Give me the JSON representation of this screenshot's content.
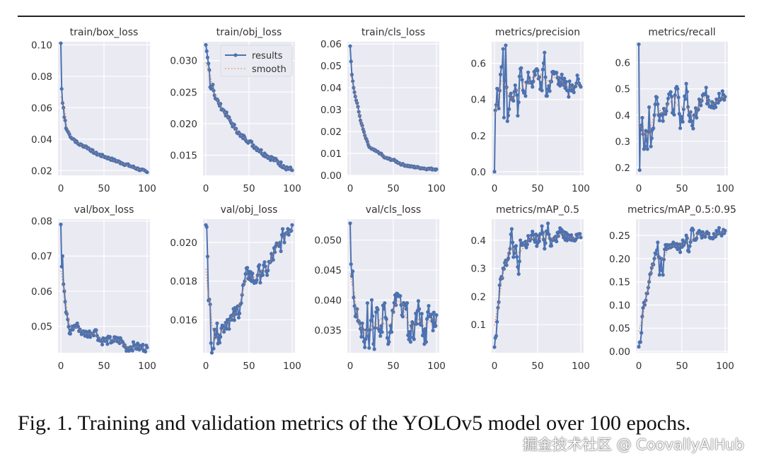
{
  "figure": {
    "caption": "Fig. 1.  Training and validation metrics of the YOLOv5 model over 100 epochs.",
    "watermark": "掘金技术社区 @ CoovallyAIHub",
    "legend": [
      "results",
      "smooth"
    ],
    "colors": {
      "results": "#4c72b0",
      "smooth": "#dd8452",
      "plot_bg": "#eaeaf2",
      "grid": "#ffffff",
      "text": "#333333"
    }
  },
  "chart_data": [
    {
      "type": "line",
      "title": "train/box_loss",
      "xlim": [
        0,
        100
      ],
      "xticks": [
        0,
        50,
        100
      ],
      "ylim": [
        0.017,
        0.102
      ],
      "yticks": [
        0.02,
        0.04,
        0.06,
        0.08,
        0.1
      ],
      "ytick_labels": [
        "0.02",
        "0.04",
        "0.06",
        "0.08",
        "0.10"
      ],
      "legend": false,
      "keypoints": [
        [
          0,
          0.101
        ],
        [
          1,
          0.072
        ],
        [
          2,
          0.063
        ],
        [
          3,
          0.06
        ],
        [
          4,
          0.054
        ],
        [
          5,
          0.052
        ],
        [
          6,
          0.047
        ],
        [
          8,
          0.045
        ],
        [
          10,
          0.043
        ],
        [
          12,
          0.041
        ],
        [
          15,
          0.04
        ],
        [
          20,
          0.037
        ],
        [
          25,
          0.036
        ],
        [
          30,
          0.035
        ],
        [
          40,
          0.031
        ],
        [
          50,
          0.029
        ],
        [
          60,
          0.027
        ],
        [
          70,
          0.025
        ],
        [
          80,
          0.023
        ],
        [
          90,
          0.021
        ],
        [
          100,
          0.019
        ]
      ],
      "noise": 0.0008
    },
    {
      "type": "line",
      "title": "train/obj_loss",
      "xlim": [
        0,
        100
      ],
      "xticks": [
        0,
        50,
        100
      ],
      "ylim": [
        0.0118,
        0.033
      ],
      "yticks": [
        0.015,
        0.02,
        0.025,
        0.03
      ],
      "ytick_labels": [
        "0.015",
        "0.020",
        "0.025",
        "0.030"
      ],
      "legend": true,
      "legend_loc": "upper right",
      "keypoints": [
        [
          0,
          0.0325
        ],
        [
          1,
          0.0315
        ],
        [
          2,
          0.0305
        ],
        [
          4,
          0.0285
        ],
        [
          5,
          0.0258
        ],
        [
          8,
          0.0262
        ],
        [
          10,
          0.0245
        ],
        [
          15,
          0.0232
        ],
        [
          20,
          0.0222
        ],
        [
          25,
          0.0212
        ],
        [
          30,
          0.02
        ],
        [
          35,
          0.0192
        ],
        [
          40,
          0.018
        ],
        [
          45,
          0.0178
        ],
        [
          50,
          0.0172
        ],
        [
          60,
          0.016
        ],
        [
          70,
          0.015
        ],
        [
          80,
          0.0142
        ],
        [
          90,
          0.0133
        ],
        [
          100,
          0.0126
        ]
      ],
      "noise": 0.0004
    },
    {
      "type": "line",
      "title": "train/cls_loss",
      "xlim": [
        0,
        100
      ],
      "xticks": [
        0,
        50,
        100
      ],
      "ylim": [
        0.0,
        0.061
      ],
      "yticks": [
        0.0,
        0.01,
        0.02,
        0.03,
        0.04,
        0.05,
        0.06
      ],
      "ytick_labels": [
        "0.00",
        "0.01",
        "0.02",
        "0.03",
        "0.04",
        "0.05",
        "0.06"
      ],
      "legend": false,
      "keypoints": [
        [
          0,
          0.059
        ],
        [
          1,
          0.052
        ],
        [
          2,
          0.046
        ],
        [
          3,
          0.043
        ],
        [
          4,
          0.04
        ],
        [
          6,
          0.036
        ],
        [
          8,
          0.033
        ],
        [
          10,
          0.029
        ],
        [
          12,
          0.025
        ],
        [
          15,
          0.021
        ],
        [
          18,
          0.017
        ],
        [
          22,
          0.013
        ],
        [
          25,
          0.012
        ],
        [
          30,
          0.011
        ],
        [
          35,
          0.01
        ],
        [
          40,
          0.008
        ],
        [
          50,
          0.007
        ],
        [
          60,
          0.005
        ],
        [
          70,
          0.004
        ],
        [
          80,
          0.0035
        ],
        [
          90,
          0.003
        ],
        [
          100,
          0.0028
        ]
      ],
      "noise": 0.0004
    },
    {
      "type": "line",
      "title": "metrics/precision",
      "xlim": [
        0,
        100
      ],
      "xticks": [
        0,
        50,
        100
      ],
      "ylim": [
        -0.02,
        0.72
      ],
      "yticks": [
        0.0,
        0.2,
        0.4,
        0.6
      ],
      "ytick_labels": [
        "0.0",
        "0.2",
        "0.4",
        "0.6"
      ],
      "legend": false,
      "keypoints": [
        [
          0,
          0.0
        ],
        [
          1,
          0.34
        ],
        [
          2,
          0.37
        ],
        [
          3,
          0.46
        ],
        [
          5,
          0.35
        ],
        [
          8,
          0.58
        ],
        [
          10,
          0.68
        ],
        [
          11,
          0.3
        ],
        [
          13,
          0.7
        ],
        [
          15,
          0.28
        ],
        [
          18,
          0.42
        ],
        [
          20,
          0.4
        ],
        [
          25,
          0.45
        ],
        [
          27,
          0.31
        ],
        [
          30,
          0.57
        ],
        [
          35,
          0.44
        ],
        [
          40,
          0.52
        ],
        [
          45,
          0.5
        ],
        [
          50,
          0.56
        ],
        [
          55,
          0.45
        ],
        [
          58,
          0.66
        ],
        [
          60,
          0.42
        ],
        [
          65,
          0.5
        ],
        [
          70,
          0.55
        ],
        [
          75,
          0.52
        ],
        [
          80,
          0.48
        ],
        [
          85,
          0.45
        ],
        [
          90,
          0.48
        ],
        [
          95,
          0.49
        ],
        [
          100,
          0.47
        ]
      ],
      "noise": 0.05
    },
    {
      "type": "line",
      "title": "metrics/recall",
      "xlim": [
        0,
        100
      ],
      "xticks": [
        0,
        50,
        100
      ],
      "ylim": [
        0.17,
        0.68
      ],
      "yticks": [
        0.2,
        0.3,
        0.4,
        0.5,
        0.6
      ],
      "ytick_labels": [
        "0.2",
        "0.3",
        "0.4",
        "0.5",
        "0.6"
      ],
      "legend": false,
      "keypoints": [
        [
          0,
          0.67
        ],
        [
          1,
          0.19
        ],
        [
          2,
          0.36
        ],
        [
          4,
          0.39
        ],
        [
          6,
          0.27
        ],
        [
          8,
          0.34
        ],
        [
          10,
          0.27
        ],
        [
          12,
          0.43
        ],
        [
          14,
          0.28
        ],
        [
          18,
          0.4
        ],
        [
          20,
          0.47
        ],
        [
          25,
          0.4
        ],
        [
          30,
          0.42
        ],
        [
          35,
          0.48
        ],
        [
          40,
          0.42
        ],
        [
          45,
          0.5
        ],
        [
          48,
          0.35
        ],
        [
          50,
          0.38
        ],
        [
          55,
          0.52
        ],
        [
          58,
          0.4
        ],
        [
          62,
          0.36
        ],
        [
          65,
          0.4
        ],
        [
          70,
          0.46
        ],
        [
          75,
          0.48
        ],
        [
          80,
          0.47
        ],
        [
          85,
          0.45
        ],
        [
          90,
          0.46
        ],
        [
          95,
          0.46
        ],
        [
          100,
          0.47
        ]
      ],
      "noise": 0.035
    },
    {
      "type": "line",
      "title": "val/box_loss",
      "xlim": [
        0,
        100
      ],
      "xticks": [
        0,
        50,
        100
      ],
      "ylim": [
        0.0425,
        0.0805
      ],
      "yticks": [
        0.05,
        0.06,
        0.07,
        0.08
      ],
      "ytick_labels": [
        "0.05",
        "0.06",
        "0.07",
        "0.08"
      ],
      "legend": false,
      "keypoints": [
        [
          0,
          0.079
        ],
        [
          1,
          0.067
        ],
        [
          2,
          0.07
        ],
        [
          3,
          0.062
        ],
        [
          4,
          0.06
        ],
        [
          5,
          0.057
        ],
        [
          6,
          0.054
        ],
        [
          8,
          0.052
        ],
        [
          10,
          0.048
        ],
        [
          12,
          0.049
        ],
        [
          15,
          0.05
        ],
        [
          20,
          0.05
        ],
        [
          25,
          0.048
        ],
        [
          30,
          0.048
        ],
        [
          35,
          0.048
        ],
        [
          40,
          0.049
        ],
        [
          45,
          0.046
        ],
        [
          50,
          0.046
        ],
        [
          60,
          0.046
        ],
        [
          70,
          0.046
        ],
        [
          75,
          0.044
        ],
        [
          80,
          0.044
        ],
        [
          85,
          0.0445
        ],
        [
          90,
          0.044
        ],
        [
          100,
          0.044
        ]
      ],
      "noise": 0.0012
    },
    {
      "type": "line",
      "title": "val/obj_loss",
      "xlim": [
        0,
        100
      ],
      "xticks": [
        0,
        50,
        100
      ],
      "ylim": [
        0.0143,
        0.0212
      ],
      "yticks": [
        0.016,
        0.018,
        0.02
      ],
      "ytick_labels": [
        "0.016",
        "0.018",
        "0.020"
      ],
      "legend": false,
      "keypoints": [
        [
          0,
          0.0209
        ],
        [
          1,
          0.0208
        ],
        [
          3,
          0.017
        ],
        [
          5,
          0.0168
        ],
        [
          6,
          0.0148
        ],
        [
          8,
          0.0145
        ],
        [
          10,
          0.0155
        ],
        [
          15,
          0.0152
        ],
        [
          20,
          0.0157
        ],
        [
          25,
          0.016
        ],
        [
          30,
          0.016
        ],
        [
          35,
          0.0163
        ],
        [
          40,
          0.0168
        ],
        [
          45,
          0.018
        ],
        [
          50,
          0.0185
        ],
        [
          55,
          0.018
        ],
        [
          60,
          0.0183
        ],
        [
          65,
          0.0185
        ],
        [
          70,
          0.0185
        ],
        [
          75,
          0.019
        ],
        [
          80,
          0.0195
        ],
        [
          85,
          0.0198
        ],
        [
          90,
          0.0203
        ],
        [
          95,
          0.0207
        ],
        [
          100,
          0.0209
        ]
      ],
      "noise": 0.0005
    },
    {
      "type": "line",
      "title": "val/cls_loss",
      "xlim": [
        0,
        100
      ],
      "xticks": [
        0,
        50,
        100
      ],
      "ylim": [
        0.0312,
        0.0535
      ],
      "yticks": [
        0.035,
        0.04,
        0.045,
        0.05
      ],
      "ytick_labels": [
        "0.035",
        "0.040",
        "0.045",
        "0.050"
      ],
      "legend": false,
      "keypoints": [
        [
          0,
          0.0528
        ],
        [
          1,
          0.046
        ],
        [
          2,
          0.044
        ],
        [
          3,
          0.0448
        ],
        [
          5,
          0.039
        ],
        [
          8,
          0.0385
        ],
        [
          10,
          0.0365
        ],
        [
          15,
          0.035
        ],
        [
          18,
          0.0335
        ],
        [
          20,
          0.0395
        ],
        [
          22,
          0.032
        ],
        [
          25,
          0.04
        ],
        [
          28,
          0.0318
        ],
        [
          30,
          0.038
        ],
        [
          35,
          0.034
        ],
        [
          40,
          0.0395
        ],
        [
          45,
          0.033
        ],
        [
          50,
          0.038
        ],
        [
          55,
          0.041
        ],
        [
          60,
          0.0375
        ],
        [
          65,
          0.0385
        ],
        [
          70,
          0.033
        ],
        [
          75,
          0.036
        ],
        [
          80,
          0.0385
        ],
        [
          85,
          0.035
        ],
        [
          88,
          0.033
        ],
        [
          90,
          0.038
        ],
        [
          95,
          0.0365
        ],
        [
          100,
          0.0375
        ]
      ],
      "noise": 0.0022
    },
    {
      "type": "line",
      "title": "metrics/mAP_0.5",
      "xlim": [
        0,
        100
      ],
      "xticks": [
        0,
        50,
        100
      ],
      "ylim": [
        0.0,
        0.475
      ],
      "yticks": [
        0.1,
        0.2,
        0.3,
        0.4
      ],
      "ytick_labels": [
        "0.1",
        "0.2",
        "0.3",
        "0.4"
      ],
      "legend": false,
      "keypoints": [
        [
          0,
          0.02
        ],
        [
          2,
          0.06
        ],
        [
          3,
          0.11
        ],
        [
          4,
          0.16
        ],
        [
          5,
          0.18
        ],
        [
          6,
          0.24
        ],
        [
          8,
          0.27
        ],
        [
          10,
          0.3
        ],
        [
          12,
          0.32
        ],
        [
          15,
          0.33
        ],
        [
          18,
          0.37
        ],
        [
          20,
          0.44
        ],
        [
          22,
          0.34
        ],
        [
          25,
          0.38
        ],
        [
          28,
          0.28
        ],
        [
          30,
          0.4
        ],
        [
          35,
          0.39
        ],
        [
          40,
          0.4
        ],
        [
          45,
          0.42
        ],
        [
          50,
          0.39
        ],
        [
          55,
          0.45
        ],
        [
          58,
          0.37
        ],
        [
          62,
          0.46
        ],
        [
          65,
          0.38
        ],
        [
          70,
          0.4
        ],
        [
          75,
          0.43
        ],
        [
          80,
          0.41
        ],
        [
          85,
          0.42
        ],
        [
          90,
          0.4
        ],
        [
          95,
          0.42
        ],
        [
          100,
          0.41
        ]
      ],
      "noise": 0.02
    },
    {
      "type": "line",
      "title": "metrics/mAP_0.5:0.95",
      "xlim": [
        0,
        100
      ],
      "xticks": [
        0,
        50,
        100
      ],
      "ylim": [
        -0.003,
        0.285
      ],
      "yticks": [
        0.0,
        0.05,
        0.1,
        0.15,
        0.2,
        0.25
      ],
      "ytick_labels": [
        "0.00",
        "0.05",
        "0.10",
        "0.15",
        "0.20",
        "0.25"
      ],
      "legend": false,
      "keypoints": [
        [
          0,
          0.01
        ],
        [
          2,
          0.02
        ],
        [
          3,
          0.04
        ],
        [
          4,
          0.075
        ],
        [
          6,
          0.105
        ],
        [
          8,
          0.11
        ],
        [
          10,
          0.125
        ],
        [
          12,
          0.15
        ],
        [
          15,
          0.18
        ],
        [
          18,
          0.2
        ],
        [
          20,
          0.21
        ],
        [
          22,
          0.235
        ],
        [
          24,
          0.165
        ],
        [
          26,
          0.2
        ],
        [
          28,
          0.165
        ],
        [
          30,
          0.22
        ],
        [
          35,
          0.225
        ],
        [
          40,
          0.235
        ],
        [
          45,
          0.22
        ],
        [
          50,
          0.225
        ],
        [
          55,
          0.25
        ],
        [
          58,
          0.215
        ],
        [
          62,
          0.265
        ],
        [
          65,
          0.24
        ],
        [
          70,
          0.26
        ],
        [
          75,
          0.25
        ],
        [
          80,
          0.255
        ],
        [
          85,
          0.245
        ],
        [
          90,
          0.26
        ],
        [
          95,
          0.255
        ],
        [
          100,
          0.26
        ]
      ],
      "noise": 0.01
    }
  ]
}
